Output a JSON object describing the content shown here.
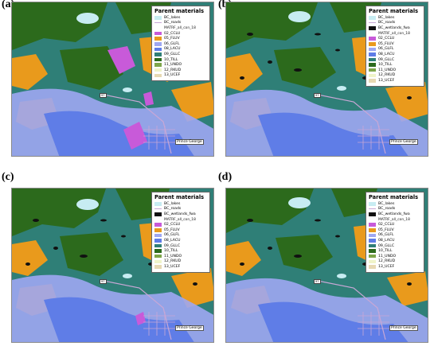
{
  "panels": [
    {
      "label": "(a)",
      "legend": {
        "title": "Parent materials",
        "items": [
          {
            "kind": "fill",
            "color": "#c7ecf2",
            "label": "BC_lakes"
          },
          {
            "kind": "line",
            "color": "#c8a7d6",
            "label": "BC_roads"
          },
          {
            "kind": "none",
            "color": "",
            "label": "MATRF_all_con_18"
          },
          {
            "kind": "fill",
            "color": "#c85ad9",
            "label": "02_CCLU"
          },
          {
            "kind": "fill",
            "color": "#e99a1c",
            "label": "05_FLUV"
          },
          {
            "kind": "fill",
            "color": "#9ea7f2",
            "label": "06_GLFL"
          },
          {
            "kind": "fill",
            "color": "#5f7de7",
            "label": "08_LACU"
          },
          {
            "kind": "fill",
            "color": "#2f7f77",
            "label": "09_GLLC"
          },
          {
            "kind": "fill",
            "color": "#2c6a1c",
            "label": "10_TILL"
          },
          {
            "kind": "fill",
            "color": "#7ea64a",
            "label": "11_UNDO"
          },
          {
            "kind": "fill",
            "color": "#f0f4c9",
            "label": "12_RKUD"
          },
          {
            "kind": "fill",
            "color": "#e7d9b3",
            "label": "13_UCEF"
          }
        ]
      },
      "city": "Prince George",
      "highway": "97"
    },
    {
      "label": "(b)",
      "legend": {
        "title": "Parent materials",
        "items": [
          {
            "kind": "fill",
            "color": "#c7ecf2",
            "label": "BC_lakes"
          },
          {
            "kind": "line",
            "color": "#c8a7d6",
            "label": "BC_roads"
          },
          {
            "kind": "fill",
            "color": "#111111",
            "label": "BC_wetlands_fwa"
          },
          {
            "kind": "none",
            "color": "",
            "label": "MATRF_all_con_18"
          },
          {
            "kind": "fill",
            "color": "#c85ad9",
            "label": "02_CCLU"
          },
          {
            "kind": "fill",
            "color": "#e99a1c",
            "label": "05_FLUV"
          },
          {
            "kind": "fill",
            "color": "#9ea7f2",
            "label": "06_GLFL"
          },
          {
            "kind": "fill",
            "color": "#5f7de7",
            "label": "08_LACU"
          },
          {
            "kind": "fill",
            "color": "#2f7f77",
            "label": "09_GLLC"
          },
          {
            "kind": "fill",
            "color": "#2c6a1c",
            "label": "10_TILL"
          },
          {
            "kind": "fill",
            "color": "#7ea64a",
            "label": "11_UNDO"
          },
          {
            "kind": "fill",
            "color": "#f0f4c9",
            "label": "12_RKUD"
          },
          {
            "kind": "fill",
            "color": "#e7d9b3",
            "label": "13_UCEF"
          }
        ]
      },
      "city": "Prince George",
      "highway": "97"
    },
    {
      "label": "(c)",
      "legend": {
        "title": "Parent materials",
        "items": [
          {
            "kind": "fill",
            "color": "#c7ecf2",
            "label": "BC_lakes"
          },
          {
            "kind": "line",
            "color": "#c8a7d6",
            "label": "BC_roads"
          },
          {
            "kind": "fill",
            "color": "#111111",
            "label": "BC_wetlands_fwa"
          },
          {
            "kind": "none",
            "color": "",
            "label": "MATRF_all_con_18"
          },
          {
            "kind": "fill",
            "color": "#c85ad9",
            "label": "02_CCLU"
          },
          {
            "kind": "fill",
            "color": "#e99a1c",
            "label": "05_FLUV"
          },
          {
            "kind": "fill",
            "color": "#9ea7f2",
            "label": "06_GLFL"
          },
          {
            "kind": "fill",
            "color": "#5f7de7",
            "label": "08_LACU"
          },
          {
            "kind": "fill",
            "color": "#2f7f77",
            "label": "09_GLLC"
          },
          {
            "kind": "fill",
            "color": "#2c6a1c",
            "label": "10_TILL"
          },
          {
            "kind": "fill",
            "color": "#7ea64a",
            "label": "11_UNDO"
          },
          {
            "kind": "fill",
            "color": "#f0f4c9",
            "label": "12_RKUD"
          },
          {
            "kind": "fill",
            "color": "#e7d9b3",
            "label": "13_UCEF"
          }
        ]
      },
      "city": "Prince George",
      "highway": "97"
    },
    {
      "label": "(d)",
      "legend": {
        "title": "Parent materials",
        "items": [
          {
            "kind": "fill",
            "color": "#c7ecf2",
            "label": "BC_lakes"
          },
          {
            "kind": "line",
            "color": "#c8a7d6",
            "label": "BC_roads"
          },
          {
            "kind": "fill",
            "color": "#111111",
            "label": "BC_wetlands_fwa"
          },
          {
            "kind": "none",
            "color": "",
            "label": "MATRF_all_con_18"
          },
          {
            "kind": "fill",
            "color": "#c85ad9",
            "label": "02_CCLU"
          },
          {
            "kind": "fill",
            "color": "#e99a1c",
            "label": "05_FLUV"
          },
          {
            "kind": "fill",
            "color": "#9ea7f2",
            "label": "06_GLFL"
          },
          {
            "kind": "fill",
            "color": "#5f7de7",
            "label": "08_LACU"
          },
          {
            "kind": "fill",
            "color": "#2f7f77",
            "label": "09_GLLC"
          },
          {
            "kind": "fill",
            "color": "#2c6a1c",
            "label": "10_TILL"
          },
          {
            "kind": "fill",
            "color": "#7ea64a",
            "label": "11_UNDO"
          },
          {
            "kind": "fill",
            "color": "#f0f4c9",
            "label": "12_RKUD"
          },
          {
            "kind": "fill",
            "color": "#e7d9b3",
            "label": "13_UCEF"
          }
        ]
      },
      "city": "Prince George",
      "highway": "97"
    }
  ],
  "colors": {
    "background": "#2f7f77",
    "fluvial": "#e99a1c",
    "glaciofluvial": "#9ea7f2",
    "lacustrine": "#5f7de7",
    "till": "#2c6a1c",
    "colluvium": "#c85ad9",
    "lakes": "#c7ecf2",
    "roads": "#c8a7d6",
    "wetlands": "#111111"
  }
}
